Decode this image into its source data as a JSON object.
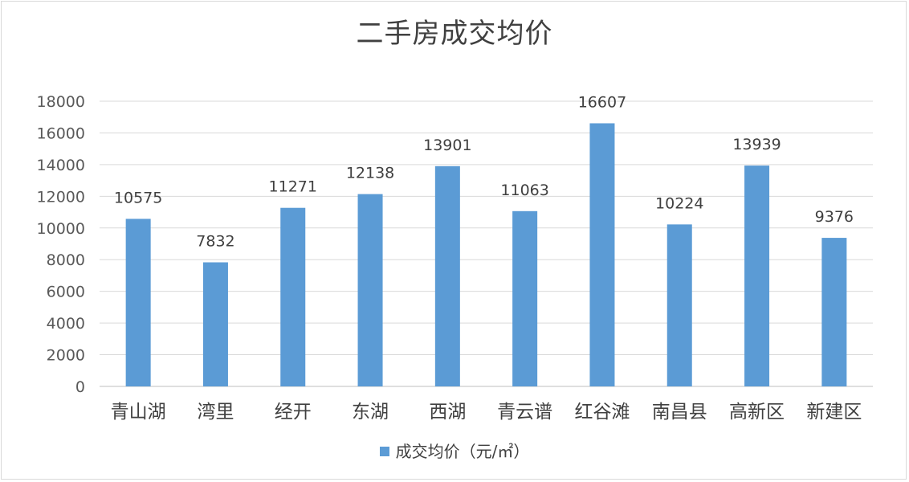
{
  "chart_data": {
    "type": "bar",
    "title": "二手房成交均价",
    "categories": [
      "青山湖",
      "湾里",
      "经开",
      "东湖",
      "西湖",
      "青云谱",
      "红谷滩",
      "南昌县",
      "高新区",
      "新建区"
    ],
    "series": [
      {
        "name": "成交均价（元/㎡）",
        "values": [
          10575,
          7832,
          11271,
          12138,
          13901,
          11063,
          16607,
          10224,
          13939,
          9376
        ],
        "color": "#5b9bd5"
      }
    ],
    "y_ticks": [
      "0",
      "2000",
      "4000",
      "6000",
      "8000",
      "10000",
      "12000",
      "14000",
      "16000",
      "18000"
    ],
    "ylim": [
      0,
      18000
    ],
    "xlabel": "",
    "ylabel": "",
    "grid": true,
    "legend_position": "bottom",
    "data_labels": true
  }
}
